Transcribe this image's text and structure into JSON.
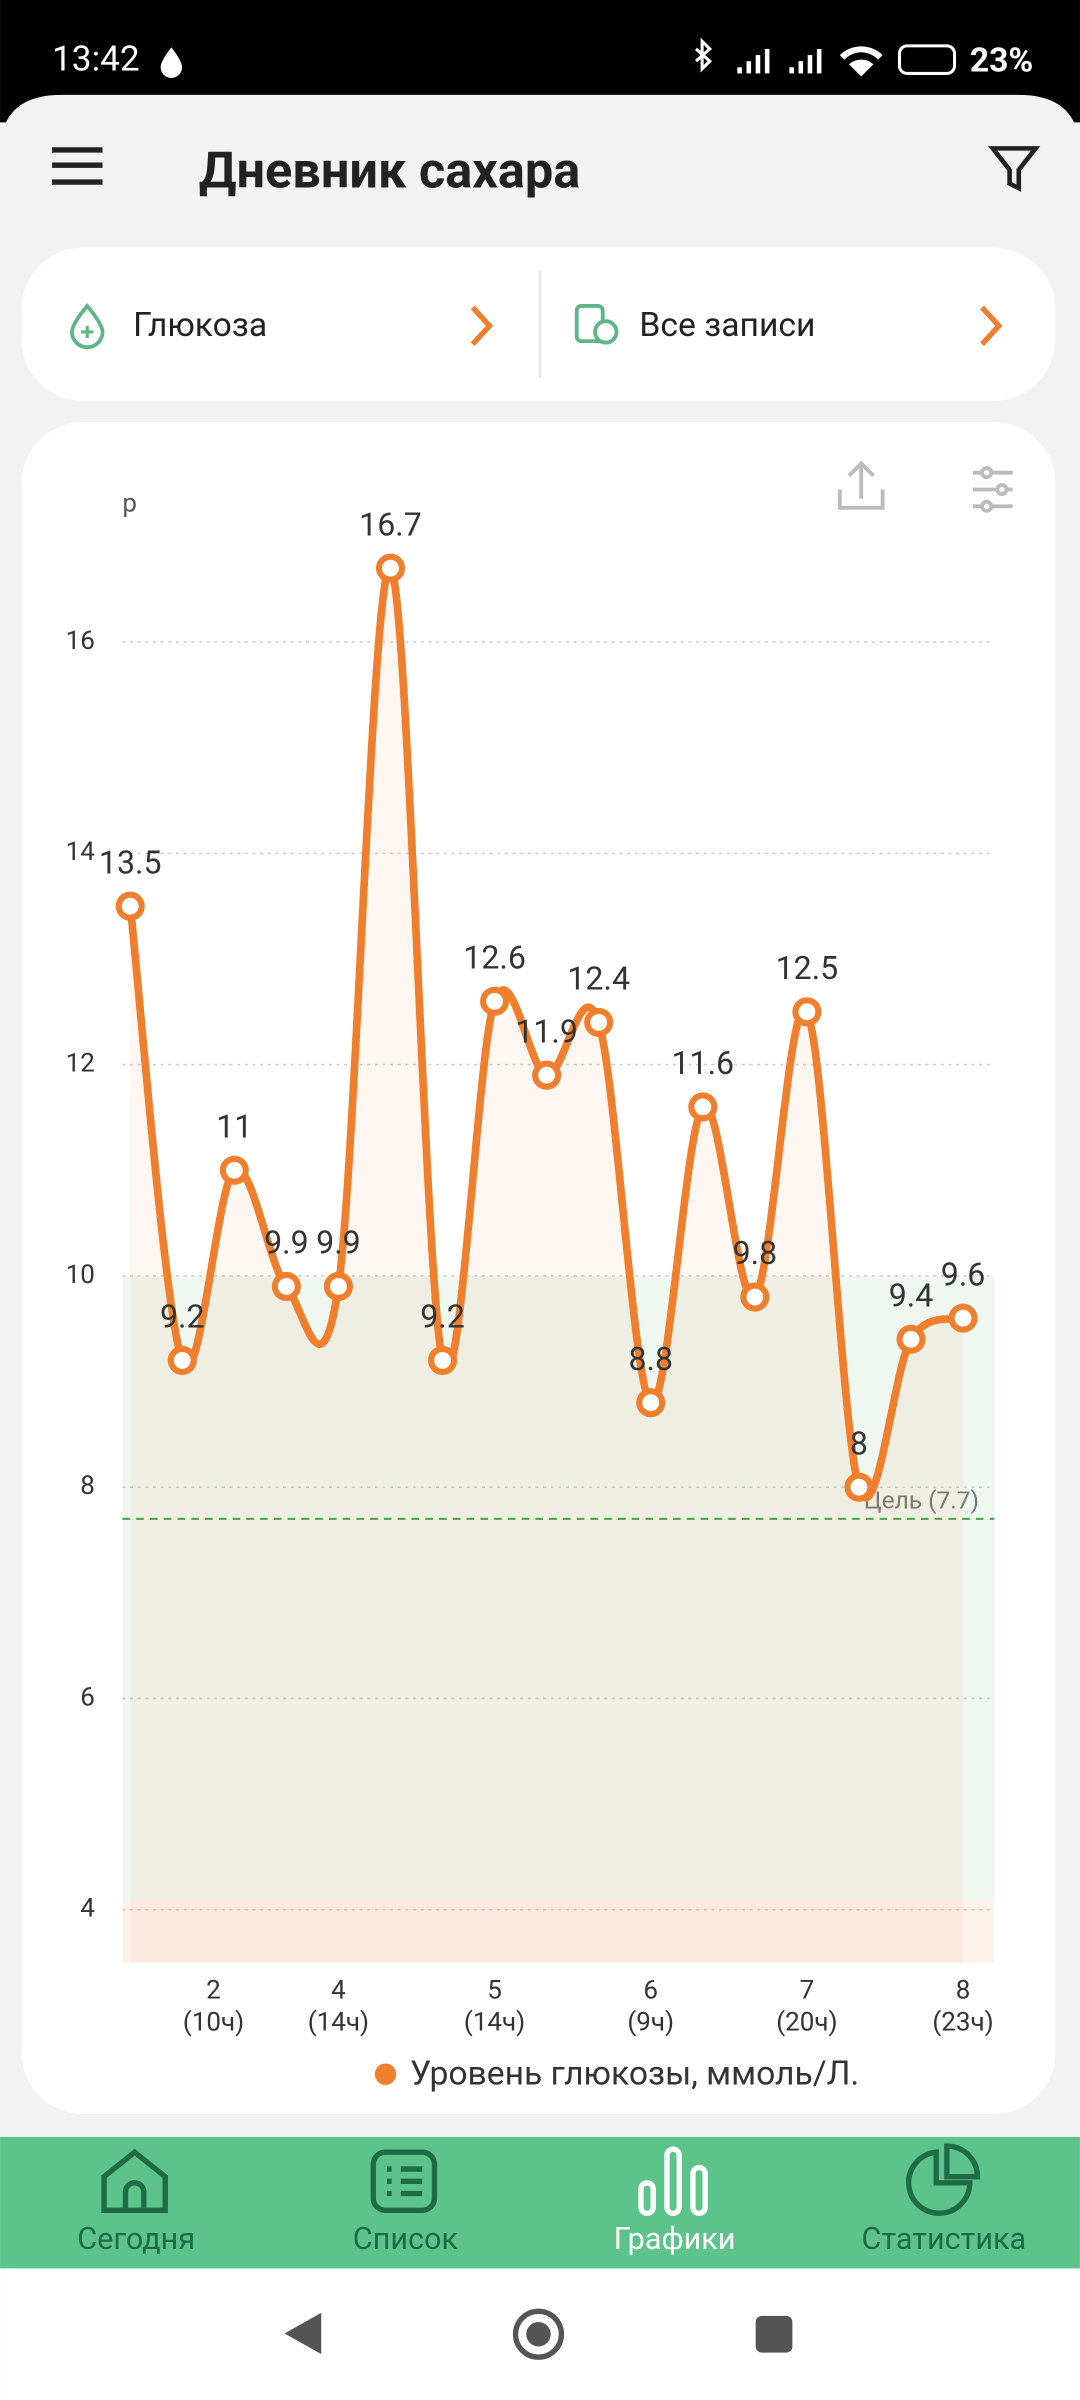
{
  "status_bar": {
    "time": "13:42",
    "battery": "23%"
  },
  "header": {
    "title": "Дневник сахара"
  },
  "filters": {
    "measure": "Глюкоза",
    "records": "Все записи"
  },
  "chart_data": {
    "type": "line",
    "y_label": "р",
    "x": [
      0,
      1,
      2,
      3,
      4,
      5,
      6,
      7,
      8,
      9,
      10,
      11,
      12,
      13,
      14,
      15,
      16
    ],
    "series": [
      {
        "name": "Уровень глюкозы, ммоль/Л.",
        "color": "#f07f2d",
        "values": [
          13.5,
          9.2,
          11,
          9.9,
          9.9,
          16.7,
          9.2,
          12.6,
          11.9,
          12.4,
          8.8,
          11.6,
          9.8,
          12.5,
          8,
          9.4,
          9.6
        ]
      }
    ],
    "xlim": [
      -0.15,
      16.6
    ],
    "xticks": [
      {
        "value": 1.6,
        "label": [
          "2",
          "(10ч)"
        ]
      },
      {
        "value": 4,
        "label": [
          "4",
          "(14ч)"
        ]
      },
      {
        "value": 7,
        "label": [
          "5",
          "(14ч)"
        ]
      },
      {
        "value": 10,
        "label": [
          "6",
          "(9ч)"
        ]
      },
      {
        "value": 13,
        "label": [
          "7",
          "(20ч)"
        ]
      },
      {
        "value": 16,
        "label": [
          "8",
          "(23ч)"
        ]
      }
    ],
    "ylim": [
      3.5,
      17.3
    ],
    "yticks": [
      4,
      6,
      8,
      10,
      12,
      14,
      16
    ],
    "grid": true,
    "target_range": [
      4.1,
      10
    ],
    "goal": {
      "value": 7.7,
      "label": "Цель (7.7)",
      "color": "#4caf50"
    }
  },
  "nav": {
    "items": [
      "Сегодня",
      "Список",
      "Графики",
      "Статистика"
    ],
    "active": 2
  }
}
